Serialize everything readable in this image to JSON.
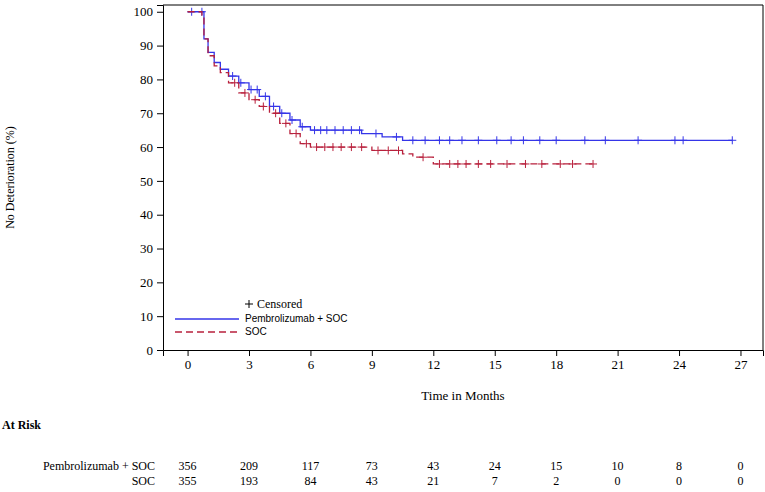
{
  "chart_data": {
    "type": "step",
    "x_label": "Time in Months",
    "y_label": "No Deterioration (%)",
    "xlim": [
      -1.2,
      28.1
    ],
    "ylim": [
      0,
      102
    ],
    "xticks": [
      0,
      3,
      6,
      9,
      12,
      15,
      18,
      21,
      24,
      27
    ],
    "yticks": [
      0,
      10,
      20,
      30,
      40,
      50,
      60,
      70,
      80,
      90,
      100
    ],
    "legend": "bottom-left",
    "censored_label": "Censored",
    "marker": "plus",
    "series": [
      {
        "name": "Pembrolizumab + SOC",
        "color": "#3535e8",
        "line_style": "solid",
        "x": [
          0,
          0.7,
          0.8,
          1,
          1.3,
          1.6,
          2,
          2.5,
          3,
          3.5,
          4,
          4.5,
          5,
          5.5,
          6,
          8.5,
          9.5,
          10.5,
          26.6
        ],
        "values": [
          100,
          100,
          92,
          88,
          85,
          83,
          81,
          79,
          77,
          75,
          72,
          70,
          68,
          66,
          65,
          64,
          63,
          62,
          62
        ],
        "censored_x": [
          0.2,
          0.7,
          2.2,
          2.6,
          3.1,
          3.4,
          3.8,
          4.2,
          4.6,
          5.1,
          5.6,
          6.2,
          6.5,
          6.8,
          7.2,
          7.6,
          8.0,
          8.4,
          9.2,
          10.2,
          11,
          11.6,
          12.3,
          12.8,
          13.4,
          14.2,
          15.1,
          15.8,
          16.4,
          17.2,
          18,
          19.4,
          20.4,
          22,
          23.8,
          24.2,
          26.6
        ],
        "censored_values": [
          100,
          100,
          81,
          79,
          77,
          77,
          75,
          72,
          70,
          68,
          66,
          65,
          65,
          65,
          65,
          65,
          65,
          65,
          64,
          63,
          62,
          62,
          62,
          62,
          62,
          62,
          62,
          62,
          62,
          62,
          62,
          62,
          62,
          62,
          62,
          62,
          62
        ]
      },
      {
        "name": "SOC",
        "color": "#b8203c",
        "line_style": "dashed",
        "x": [
          0,
          0.7,
          0.8,
          1,
          1.3,
          1.6,
          2,
          2.5,
          3,
          3.5,
          4,
          4.5,
          5,
          5.5,
          6,
          9,
          10.5,
          11,
          12,
          19.8
        ],
        "values": [
          100,
          99,
          92,
          87,
          84,
          82,
          79,
          76,
          74,
          72,
          70,
          67,
          64,
          61,
          60,
          59,
          58,
          57,
          55,
          55
        ],
        "censored_x": [
          2.3,
          2.8,
          3.3,
          3.7,
          4.3,
          4.8,
          5.3,
          5.8,
          6.3,
          6.7,
          7.1,
          7.5,
          8.0,
          8.5,
          9.3,
          9.8,
          10.3,
          11.5,
          12.3,
          12.8,
          13.2,
          13.6,
          14.2,
          14.8,
          15.6,
          16.5,
          17.3,
          18.2,
          18.8,
          19.8
        ],
        "censored_values": [
          79,
          76,
          74,
          72,
          70,
          67,
          64,
          61,
          60,
          60,
          60,
          60,
          60,
          60,
          59,
          59,
          59,
          57,
          55,
          55,
          55,
          55,
          55,
          55,
          55,
          55,
          55,
          55,
          55,
          55
        ]
      }
    ],
    "at_risk": {
      "title": "At Risk",
      "times": [
        0,
        3,
        6,
        9,
        12,
        15,
        18,
        21,
        24,
        27
      ],
      "rows": [
        {
          "name": "Pembrolizumab + SOC",
          "values": [
            356,
            209,
            117,
            73,
            43,
            24,
            15,
            10,
            8,
            0
          ]
        },
        {
          "name": "SOC",
          "values": [
            355,
            193,
            84,
            43,
            21,
            7,
            2,
            0,
            0,
            0
          ]
        }
      ]
    }
  }
}
